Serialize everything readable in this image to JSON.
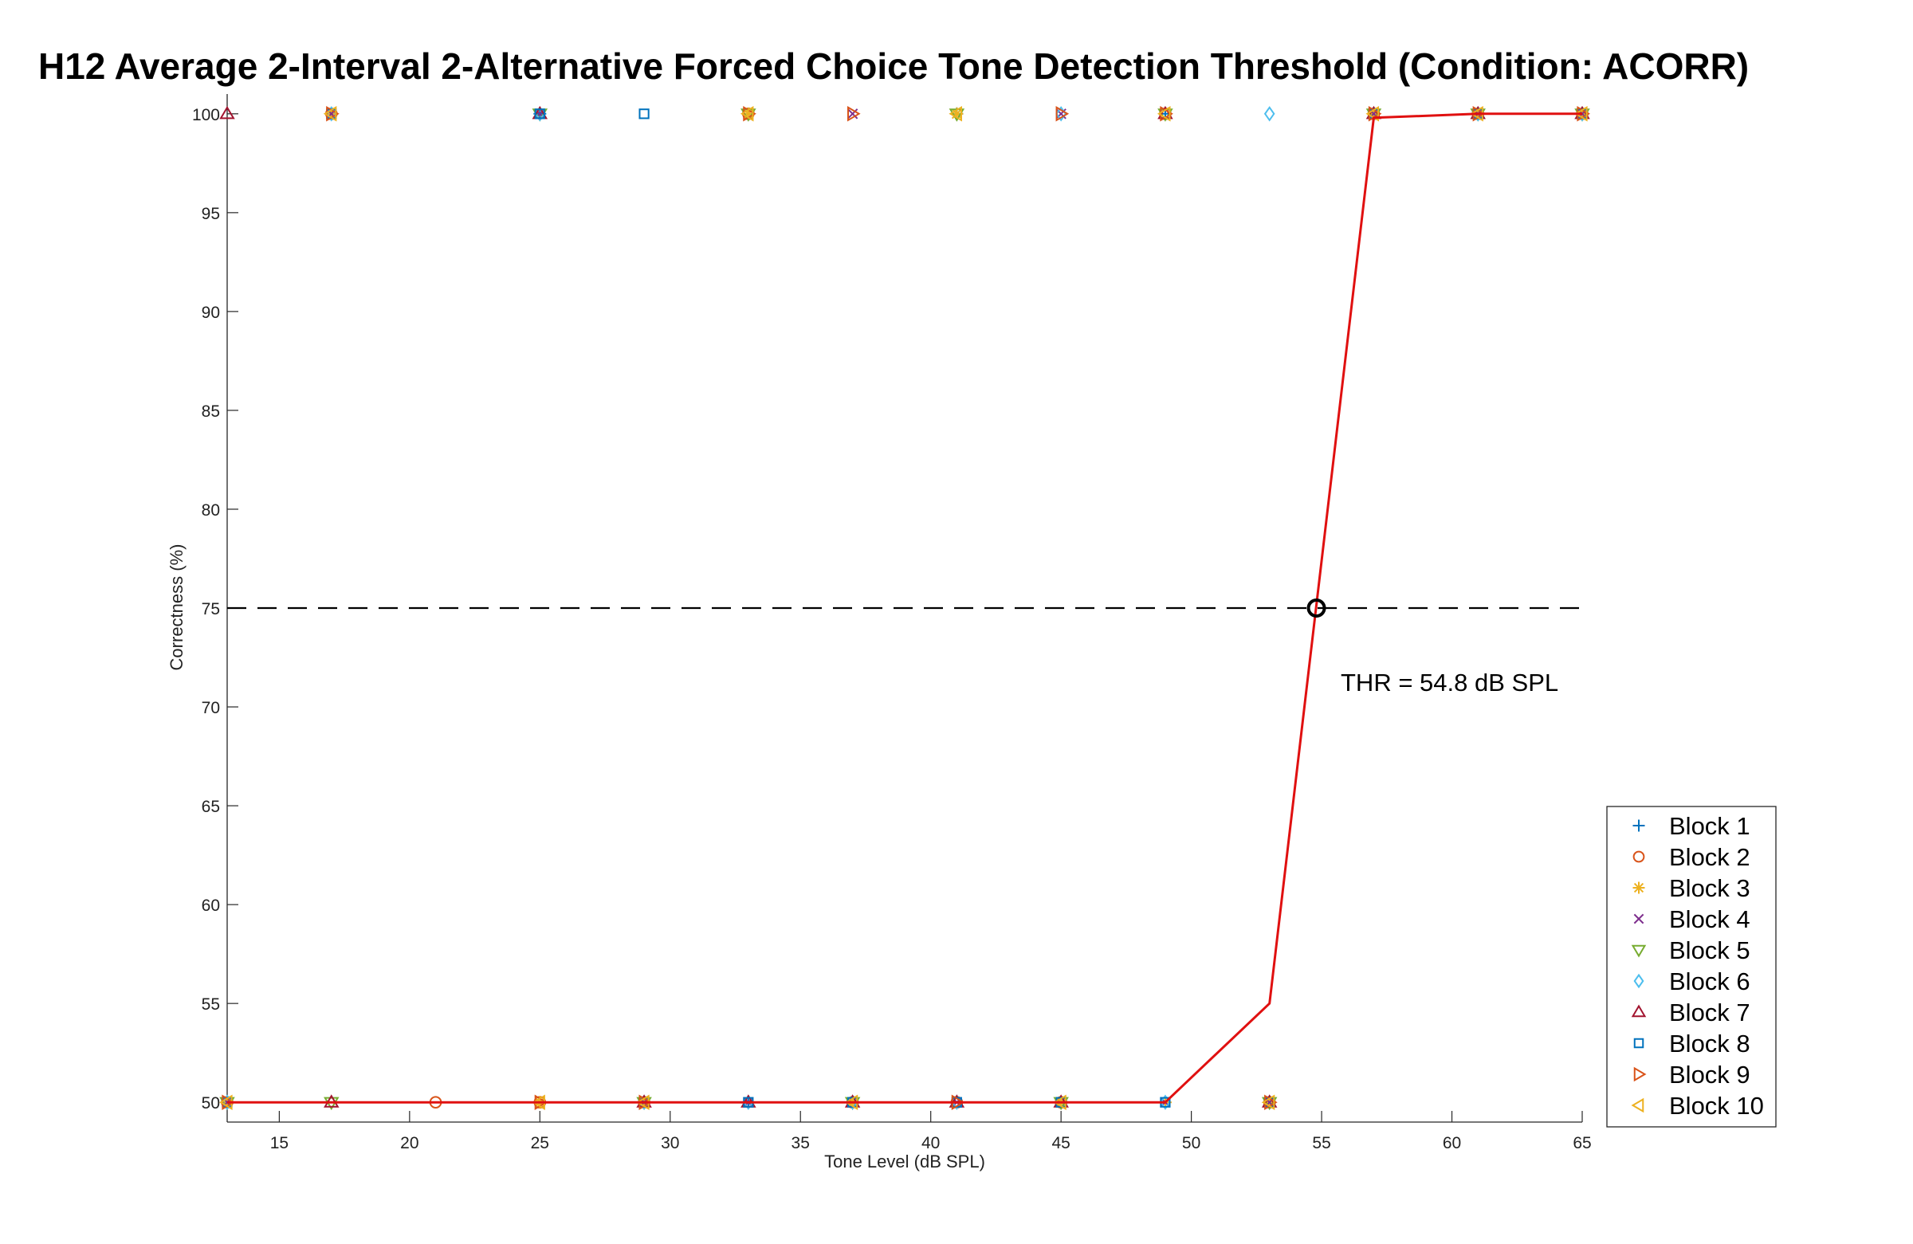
{
  "chart_data": {
    "type": "scatter",
    "title": "H12 Average 2-Interval 2-Alternative Forced Choice Tone Detection Threshold (Condition: ACORR)",
    "xlabel": "Tone Level (dB SPL)",
    "ylabel": "Correctness (%)",
    "xlim": [
      13,
      65
    ],
    "ylim": [
      49,
      101
    ],
    "xticks": [
      15,
      20,
      25,
      30,
      35,
      40,
      45,
      50,
      55,
      60,
      65
    ],
    "yticks": [
      50,
      55,
      60,
      65,
      70,
      75,
      80,
      85,
      90,
      95,
      100
    ],
    "grid": false,
    "legend_position": "bottom-right",
    "series": [
      {
        "name": "Block 1",
        "marker": "plus",
        "color": "#0072BD",
        "points": [
          [
            13,
            50
          ],
          [
            17,
            100
          ],
          [
            25,
            100
          ],
          [
            29,
            50
          ],
          [
            33,
            50
          ],
          [
            37,
            50
          ],
          [
            41,
            100
          ],
          [
            45,
            50
          ],
          [
            49,
            100
          ],
          [
            53,
            50
          ],
          [
            57,
            100
          ],
          [
            61,
            100
          ],
          [
            65,
            100
          ]
        ]
      },
      {
        "name": "Block 2",
        "marker": "circle",
        "color": "#D95319",
        "points": [
          [
            13,
            50
          ],
          [
            17,
            100
          ],
          [
            21,
            50
          ],
          [
            25,
            50
          ],
          [
            29,
            50
          ],
          [
            33,
            100
          ],
          [
            37,
            50
          ],
          [
            41,
            50
          ],
          [
            45,
            50
          ],
          [
            49,
            100
          ],
          [
            53,
            50
          ],
          [
            57,
            100
          ],
          [
            61,
            100
          ],
          [
            65,
            100
          ]
        ]
      },
      {
        "name": "Block 3",
        "marker": "asterisk",
        "color": "#EDB120",
        "points": [
          [
            13,
            50
          ],
          [
            17,
            100
          ],
          [
            25,
            50
          ],
          [
            29,
            50
          ],
          [
            33,
            100
          ],
          [
            37,
            50
          ],
          [
            41,
            100
          ],
          [
            45,
            50
          ],
          [
            49,
            50
          ],
          [
            53,
            50
          ],
          [
            57,
            100
          ],
          [
            61,
            100
          ],
          [
            65,
            100
          ]
        ]
      },
      {
        "name": "Block 4",
        "marker": "x",
        "color": "#7E2F8E",
        "points": [
          [
            13,
            50
          ],
          [
            17,
            100
          ],
          [
            25,
            100
          ],
          [
            29,
            50
          ],
          [
            33,
            50
          ],
          [
            37,
            100
          ],
          [
            41,
            50
          ],
          [
            45,
            100
          ],
          [
            49,
            50
          ],
          [
            53,
            50
          ],
          [
            57,
            100
          ],
          [
            61,
            100
          ],
          [
            65,
            100
          ]
        ]
      },
      {
        "name": "Block 5",
        "marker": "triangle-down",
        "color": "#77AC30",
        "points": [
          [
            13,
            50
          ],
          [
            17,
            50
          ],
          [
            25,
            100
          ],
          [
            29,
            50
          ],
          [
            33,
            100
          ],
          [
            37,
            50
          ],
          [
            41,
            100
          ],
          [
            45,
            50
          ],
          [
            49,
            100
          ],
          [
            53,
            50
          ],
          [
            57,
            100
          ],
          [
            61,
            100
          ],
          [
            65,
            100
          ]
        ]
      },
      {
        "name": "Block 6",
        "marker": "diamond",
        "color": "#4DBEEE",
        "points": [
          [
            13,
            50
          ],
          [
            17,
            100
          ],
          [
            25,
            100
          ],
          [
            29,
            50
          ],
          [
            33,
            50
          ],
          [
            37,
            50
          ],
          [
            41,
            50
          ],
          [
            45,
            100
          ],
          [
            49,
            50
          ],
          [
            53,
            100
          ],
          [
            57,
            100
          ],
          [
            61,
            100
          ],
          [
            65,
            100
          ]
        ]
      },
      {
        "name": "Block 7",
        "marker": "triangle-up",
        "color": "#A2142F",
        "points": [
          [
            13,
            100
          ],
          [
            17,
            50
          ],
          [
            25,
            100
          ],
          [
            29,
            50
          ],
          [
            33,
            50
          ],
          [
            37,
            50
          ],
          [
            41,
            50
          ],
          [
            45,
            50
          ],
          [
            49,
            100
          ],
          [
            53,
            50
          ],
          [
            57,
            100
          ],
          [
            61,
            100
          ],
          [
            65,
            100
          ]
        ]
      },
      {
        "name": "Block 8",
        "marker": "square",
        "color": "#0072BD",
        "points": [
          [
            13,
            50
          ],
          [
            17,
            100
          ],
          [
            25,
            100
          ],
          [
            29,
            100
          ],
          [
            33,
            50
          ],
          [
            37,
            50
          ],
          [
            41,
            50
          ],
          [
            45,
            50
          ],
          [
            49,
            50
          ],
          [
            53,
            50
          ],
          [
            57,
            100
          ],
          [
            61,
            100
          ],
          [
            65,
            100
          ]
        ]
      },
      {
        "name": "Block 9",
        "marker": "triangle-right",
        "color": "#D95319",
        "points": [
          [
            13,
            50
          ],
          [
            17,
            100
          ],
          [
            25,
            50
          ],
          [
            29,
            50
          ],
          [
            33,
            100
          ],
          [
            37,
            100
          ],
          [
            41,
            50
          ],
          [
            45,
            100
          ],
          [
            49,
            100
          ],
          [
            53,
            50
          ],
          [
            57,
            100
          ],
          [
            61,
            100
          ],
          [
            65,
            100
          ]
        ]
      },
      {
        "name": "Block 10",
        "marker": "triangle-left",
        "color": "#EDB120",
        "points": [
          [
            13,
            50
          ],
          [
            17,
            100
          ],
          [
            25,
            50
          ],
          [
            29,
            50
          ],
          [
            33,
            100
          ],
          [
            37,
            50
          ],
          [
            41,
            100
          ],
          [
            45,
            50
          ],
          [
            49,
            100
          ],
          [
            53,
            50
          ],
          [
            57,
            100
          ],
          [
            61,
            100
          ],
          [
            65,
            100
          ]
        ]
      }
    ],
    "fit_line": {
      "color": "#E01010",
      "points": [
        [
          13,
          50
        ],
        [
          17,
          50
        ],
        [
          21,
          50
        ],
        [
          25,
          50
        ],
        [
          29,
          50
        ],
        [
          33,
          50
        ],
        [
          37,
          50
        ],
        [
          41,
          50
        ],
        [
          45,
          50
        ],
        [
          49,
          50
        ],
        [
          53,
          55
        ],
        [
          57,
          99.8
        ],
        [
          61,
          100
        ],
        [
          65,
          100
        ]
      ]
    },
    "reference_line": {
      "y": 75,
      "style": "dashed",
      "color": "#000000"
    },
    "threshold_marker": {
      "x": 54.8,
      "y": 75
    },
    "annotation": "THR = 54.8 dB SPL"
  }
}
